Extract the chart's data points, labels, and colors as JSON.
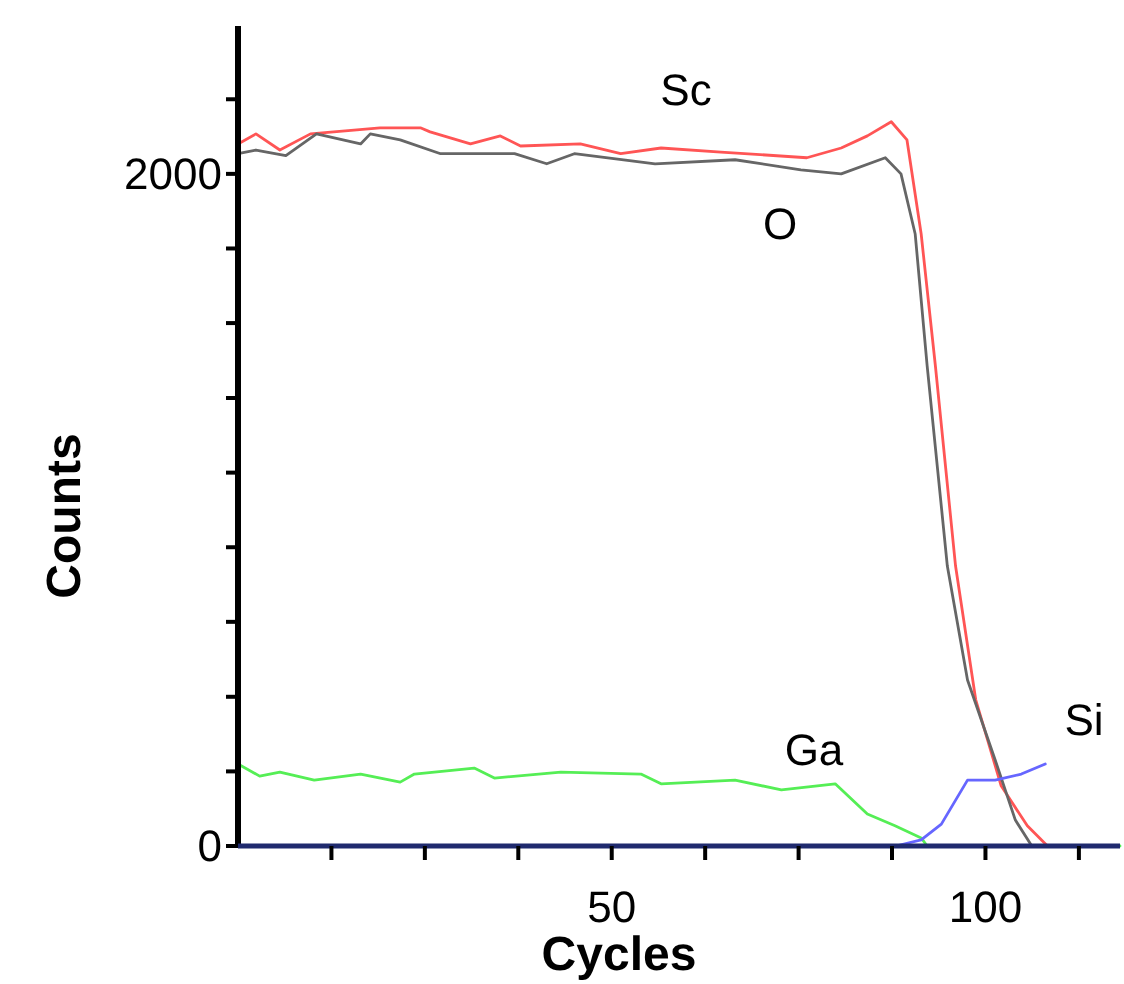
{
  "chart_data": {
    "type": "line",
    "xlabel": "Cycles",
    "ylabel": "Counts",
    "xlim": [
      0,
      118
    ],
    "ylim": [
      0,
      2440
    ],
    "xticks": [
      {
        "value": 12.5,
        "label": null
      },
      {
        "value": 25,
        "label": null
      },
      {
        "value": 37.5,
        "label": null
      },
      50,
      {
        "value": 62.5,
        "label": null
      },
      {
        "value": 75,
        "label": null
      },
      {
        "value": 87.5,
        "label": null
      },
      100,
      {
        "value": 112.5,
        "label": null
      }
    ],
    "yticks": [
      0,
      {
        "value": 222,
        "label": null
      },
      {
        "value": 444,
        "label": null
      },
      {
        "value": 667,
        "label": null
      },
      {
        "value": 889,
        "label": null
      },
      {
        "value": 1111,
        "label": null
      },
      {
        "value": 1333,
        "label": null
      },
      {
        "value": 1556,
        "label": null
      },
      {
        "value": 1778,
        "label": null
      },
      2000,
      {
        "value": 2222,
        "label": null
      }
    ],
    "grid": false,
    "marker": "none",
    "line_style": "solid",
    "series": [
      {
        "name": "Sc",
        "color": "#ff5555",
        "x": [
          0,
          2.4,
          5.6,
          9.7,
          19,
          24.4,
          25.7,
          31.1,
          35.1,
          37.8,
          45.8,
          51.2,
          56.6,
          64.6,
          76.1,
          80.7,
          84.2,
          87.4,
          89.5,
          91.4,
          93.3,
          96,
          98.7,
          102.1,
          105.6,
          108.3
        ],
        "values": [
          2089,
          2119,
          2071,
          2119,
          2137,
          2137,
          2125,
          2089,
          2113,
          2083,
          2089,
          2060,
          2077,
          2065,
          2048,
          2077,
          2113,
          2155,
          2101,
          1821,
          1429,
          833,
          435,
          179,
          60,
          0
        ]
      },
      {
        "name": "O",
        "color": "#666666",
        "x": [
          0,
          2.4,
          6.4,
          10.5,
          16.4,
          17.7,
          21.7,
          27.1,
          37,
          41.3,
          45,
          55.8,
          66.5,
          75.3,
          80.7,
          86.6,
          88.7,
          90.6,
          92.2,
          94.9,
          97.6,
          101.3,
          104,
          106.2
        ],
        "values": [
          2060,
          2071,
          2054,
          2119,
          2089,
          2119,
          2101,
          2060,
          2060,
          2030,
          2060,
          2030,
          2042,
          2012,
          2000,
          2048,
          2000,
          1821,
          1429,
          833,
          494,
          256,
          77,
          0
        ]
      },
      {
        "name": "Ga",
        "color": "#55ee55",
        "x": [
          0,
          2.9,
          5.6,
          10.2,
          16.4,
          21.7,
          23.6,
          31.6,
          34.3,
          43.2,
          53.9,
          56.6,
          66.5,
          72.7,
          79.9,
          84.2,
          87.9,
          91.4,
          92.2,
          118
        ],
        "values": [
          244,
          208,
          220,
          196,
          214,
          190,
          214,
          232,
          202,
          220,
          214,
          185,
          196,
          167,
          185,
          95,
          60,
          24,
          0,
          0
        ]
      },
      {
        "name": "Si",
        "color": "#6666ff",
        "x": [
          88,
          91.4,
          94.1,
          97.6,
          101.3,
          104.8,
          108
        ],
        "values": [
          0,
          18,
          65,
          196,
          196,
          214,
          244
        ]
      }
    ]
  }
}
